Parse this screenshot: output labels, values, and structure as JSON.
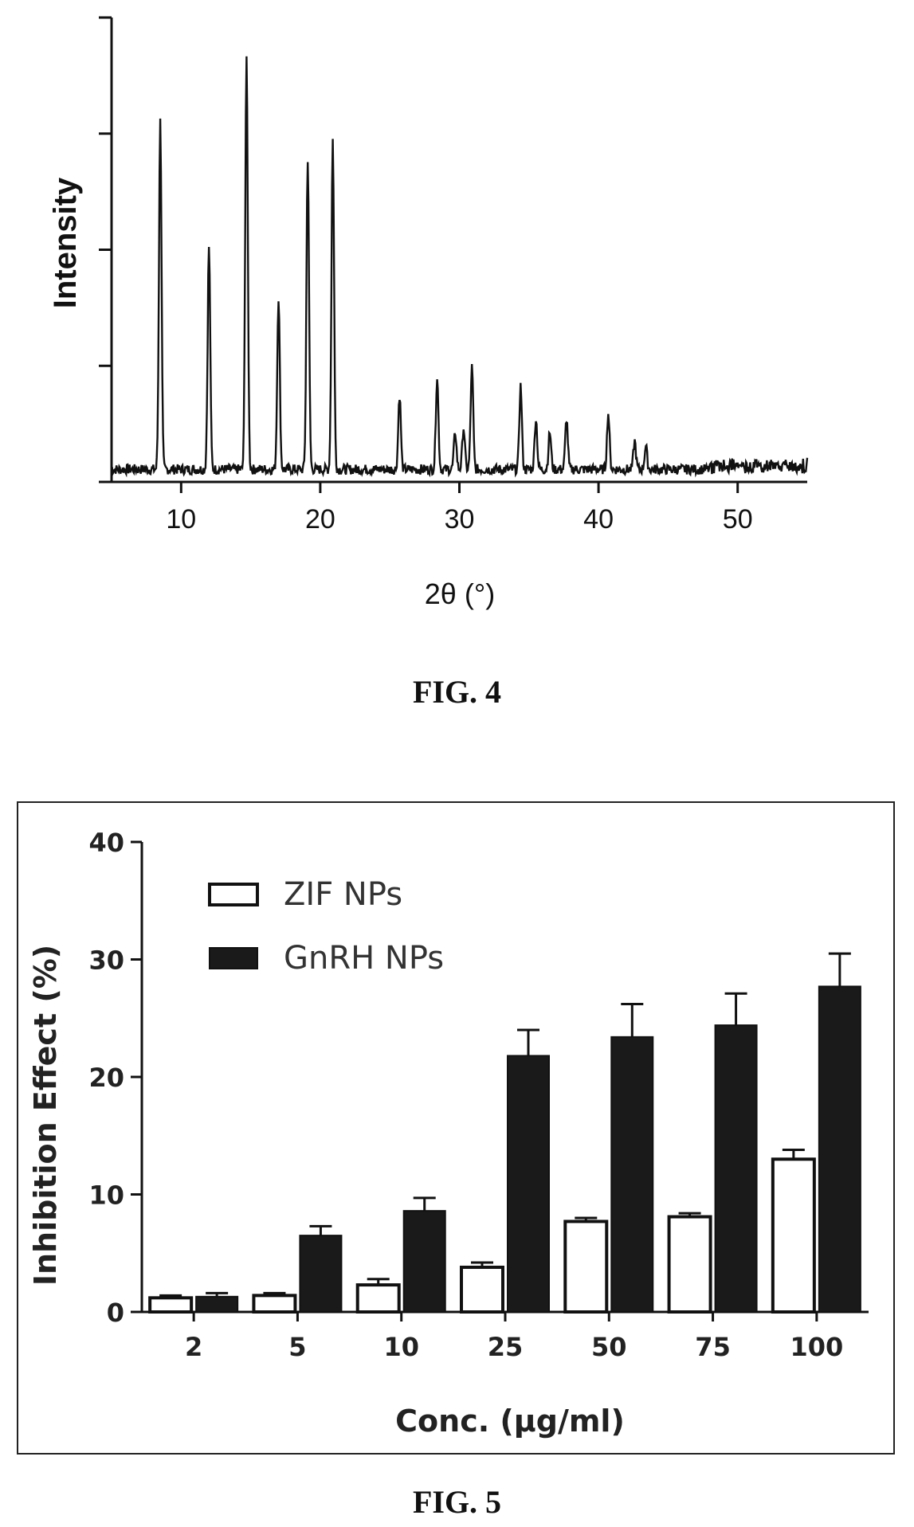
{
  "figures": [
    {
      "caption": "FIG. 4"
    },
    {
      "caption": "FIG. 5"
    }
  ],
  "chart_data": [
    {
      "type": "line",
      "xlabel": "2θ (°)",
      "ylabel": "Intensity",
      "xlim": [
        5,
        55
      ],
      "ylim": [
        0,
        100
      ],
      "x_ticks": [
        10,
        20,
        30,
        40,
        50
      ],
      "y_ticks_unlabeled": true,
      "baseline": 2,
      "peaks": [
        {
          "x": 8.5,
          "y": 77
        },
        {
          "x": 12.0,
          "y": 50
        },
        {
          "x": 14.7,
          "y": 91
        },
        {
          "x": 17.0,
          "y": 39
        },
        {
          "x": 19.1,
          "y": 69
        },
        {
          "x": 20.9,
          "y": 73
        },
        {
          "x": 25.7,
          "y": 18
        },
        {
          "x": 28.4,
          "y": 22
        },
        {
          "x": 29.7,
          "y": 10
        },
        {
          "x": 30.3,
          "y": 11
        },
        {
          "x": 30.9,
          "y": 24
        },
        {
          "x": 34.4,
          "y": 20
        },
        {
          "x": 35.5,
          "y": 13
        },
        {
          "x": 36.5,
          "y": 10
        },
        {
          "x": 37.7,
          "y": 13
        },
        {
          "x": 40.7,
          "y": 14
        },
        {
          "x": 42.6,
          "y": 8
        },
        {
          "x": 43.4,
          "y": 7
        }
      ]
    },
    {
      "type": "bar",
      "xlabel": "Conc. (μg/ml)",
      "ylabel": "Inhibition Effect (%)",
      "ylim": [
        0,
        40
      ],
      "y_ticks": [
        0,
        10,
        20,
        30,
        40
      ],
      "categories": [
        "2",
        "5",
        "10",
        "25",
        "50",
        "75",
        "100"
      ],
      "legend_position": "top-left",
      "series": [
        {
          "name": "ZIF NPs",
          "fill": "#ffffff",
          "values": [
            1.2,
            1.4,
            2.3,
            3.8,
            7.7,
            8.1,
            13.0
          ],
          "errors": [
            0.2,
            0.2,
            0.5,
            0.4,
            0.3,
            0.3,
            0.8
          ]
        },
        {
          "name": "GnRH NPs",
          "fill": "#1a1a1a",
          "values": [
            1.3,
            6.5,
            8.6,
            21.8,
            23.4,
            24.4,
            27.7
          ],
          "errors": [
            0.3,
            0.8,
            1.1,
            2.2,
            2.8,
            2.7,
            2.8
          ]
        }
      ]
    }
  ]
}
